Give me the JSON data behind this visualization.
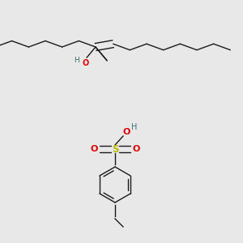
{
  "bg_color": "#e8e8e8",
  "line_color": "#1a1a1a",
  "O_color": "#dd0000",
  "S_color": "#bbbb00",
  "H_color": "#407070",
  "bond_lw": 1.0,
  "figsize": [
    3.0,
    3.0
  ],
  "dpi": 100,
  "xlim": [
    0,
    3.0
  ],
  "ylim": [
    0,
    3.0
  ]
}
